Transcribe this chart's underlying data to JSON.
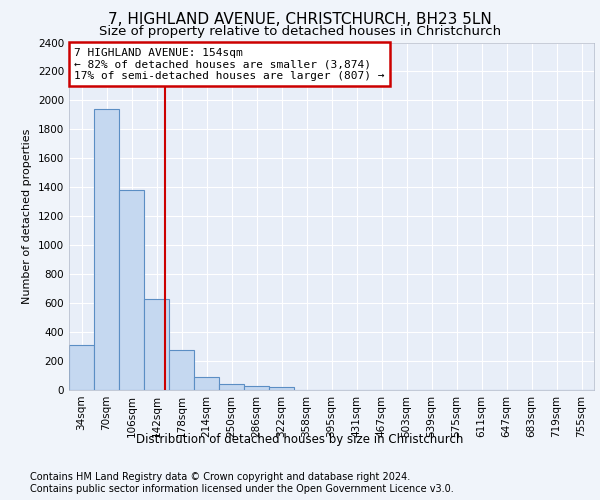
{
  "title1": "7, HIGHLAND AVENUE, CHRISTCHURCH, BH23 5LN",
  "title2": "Size of property relative to detached houses in Christchurch",
  "xlabel": "Distribution of detached houses by size in Christchurch",
  "ylabel": "Number of detached properties",
  "footnote1": "Contains HM Land Registry data © Crown copyright and database right 2024.",
  "footnote2": "Contains public sector information licensed under the Open Government Licence v3.0.",
  "bar_labels": [
    "34sqm",
    "70sqm",
    "106sqm",
    "142sqm",
    "178sqm",
    "214sqm",
    "250sqm",
    "286sqm",
    "322sqm",
    "358sqm",
    "395sqm",
    "431sqm",
    "467sqm",
    "503sqm",
    "539sqm",
    "575sqm",
    "611sqm",
    "647sqm",
    "683sqm",
    "719sqm",
    "755sqm"
  ],
  "bar_values": [
    310,
    1940,
    1380,
    630,
    275,
    90,
    40,
    30,
    20,
    0,
    0,
    0,
    0,
    0,
    0,
    0,
    0,
    0,
    0,
    0,
    0
  ],
  "bar_color": "#c5d8f0",
  "bar_edge_color": "#5b8ec4",
  "highlight_line_color": "#cc0000",
  "annotation_line1": "7 HIGHLAND AVENUE: 154sqm",
  "annotation_line2": "← 82% of detached houses are smaller (3,874)",
  "annotation_line3": "17% of semi-detached houses are larger (807) →",
  "annotation_box_color": "#cc0000",
  "ylim": [
    0,
    2400
  ],
  "yticks": [
    0,
    200,
    400,
    600,
    800,
    1000,
    1200,
    1400,
    1600,
    1800,
    2000,
    2200,
    2400
  ],
  "bg_color": "#f0f4fa",
  "plot_bg_color": "#e8eef8",
  "grid_color": "#ffffff",
  "title1_fontsize": 11,
  "title2_fontsize": 9.5,
  "axis_fontsize": 8,
  "tick_fontsize": 7.5,
  "footnote_fontsize": 7,
  "annotation_fontsize": 8
}
